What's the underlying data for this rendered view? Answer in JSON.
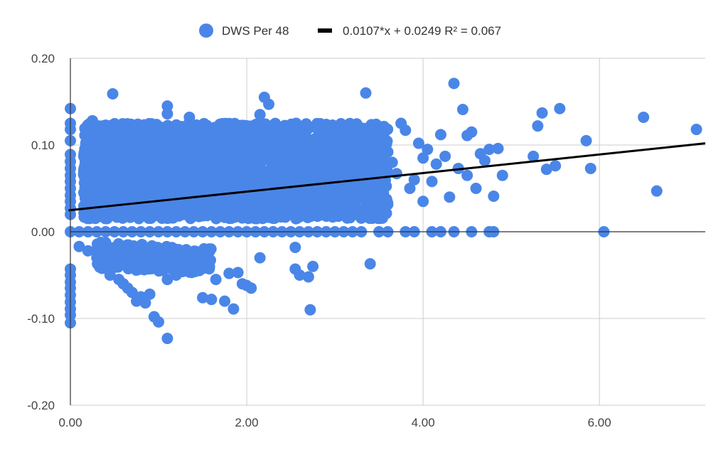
{
  "legend": {
    "series_label": "DWS Per 48",
    "trend_label": "0.0107*x + 0.0249 R² = 0.067"
  },
  "colors": {
    "points": "#4a86e8",
    "trendline": "#000000",
    "grid": "#cccccc",
    "axis": "#333333"
  },
  "chart_data": {
    "type": "scatter",
    "title": "",
    "xlabel": "",
    "ylabel": "",
    "xlim": [
      0,
      7.2
    ],
    "ylim": [
      -0.2,
      0.2
    ],
    "x_ticks": [
      "0.00",
      "2.00",
      "4.00",
      "6.00"
    ],
    "y_ticks": [
      "0.20",
      "0.10",
      "0.00",
      "-0.10",
      "-0.20"
    ],
    "grid": true,
    "legend_position": "top",
    "trendline": {
      "slope": 0.0107,
      "intercept": 0.0249,
      "r2": 0.067
    },
    "series": [
      {
        "name": "DWS Per 48",
        "points": [
          [
            0.0,
            0.142
          ],
          [
            0.0,
            0.125
          ],
          [
            0.0,
            0.118
          ],
          [
            0.0,
            0.105
          ],
          [
            0.0,
            0.089
          ],
          [
            0.0,
            0.081
          ],
          [
            0.0,
            0.073
          ],
          [
            0.0,
            0.065
          ],
          [
            0.0,
            0.058
          ],
          [
            0.0,
            0.05
          ],
          [
            0.0,
            0.042
          ],
          [
            0.0,
            0.035
          ],
          [
            0.0,
            0.027
          ],
          [
            0.0,
            0.02
          ],
          [
            0.0,
            0.0
          ],
          [
            0.0,
            -0.043
          ],
          [
            0.0,
            -0.05
          ],
          [
            0.0,
            -0.058
          ],
          [
            0.0,
            -0.065
          ],
          [
            0.0,
            -0.073
          ],
          [
            0.0,
            -0.081
          ],
          [
            0.0,
            -0.089
          ],
          [
            0.0,
            -0.096
          ],
          [
            0.0,
            -0.105
          ],
          [
            0.1,
            -0.017
          ],
          [
            0.2,
            -0.022
          ],
          [
            0.25,
            0.128
          ],
          [
            0.3,
            -0.03
          ],
          [
            0.35,
            -0.038
          ],
          [
            0.4,
            -0.042
          ],
          [
            0.45,
            -0.05
          ],
          [
            0.48,
            0.159
          ],
          [
            0.5,
            -0.033
          ],
          [
            0.55,
            -0.055
          ],
          [
            0.6,
            -0.06
          ],
          [
            0.65,
            -0.065
          ],
          [
            0.7,
            -0.07
          ],
          [
            0.75,
            -0.08
          ],
          [
            0.8,
            -0.075
          ],
          [
            0.85,
            -0.082
          ],
          [
            0.9,
            -0.072
          ],
          [
            0.95,
            -0.098
          ],
          [
            1.0,
            -0.104
          ],
          [
            1.1,
            -0.123
          ],
          [
            1.1,
            -0.055
          ],
          [
            1.2,
            -0.05
          ],
          [
            1.3,
            -0.045
          ],
          [
            1.1,
            0.145
          ],
          [
            1.1,
            0.136
          ],
          [
            1.35,
            0.132
          ],
          [
            1.5,
            -0.076
          ],
          [
            1.6,
            -0.078
          ],
          [
            1.65,
            -0.055
          ],
          [
            1.75,
            -0.08
          ],
          [
            1.8,
            -0.048
          ],
          [
            1.85,
            -0.089
          ],
          [
            1.9,
            -0.047
          ],
          [
            1.95,
            -0.06
          ],
          [
            2.0,
            -0.062
          ],
          [
            2.05,
            -0.065
          ],
          [
            2.15,
            -0.03
          ],
          [
            2.2,
            0.155
          ],
          [
            2.25,
            0.147
          ],
          [
            2.15,
            0.135
          ],
          [
            2.55,
            -0.018
          ],
          [
            2.55,
            -0.043
          ],
          [
            2.6,
            -0.05
          ],
          [
            2.7,
            -0.052
          ],
          [
            2.72,
            -0.09
          ],
          [
            2.75,
            -0.04
          ],
          [
            3.35,
            0.16
          ],
          [
            3.4,
            -0.037
          ],
          [
            0.1,
            0.0
          ],
          [
            0.2,
            0.0
          ],
          [
            0.3,
            0.0
          ],
          [
            0.4,
            0.0
          ],
          [
            0.5,
            0.0
          ],
          [
            0.6,
            0.0
          ],
          [
            0.7,
            0.0
          ],
          [
            0.8,
            0.0
          ],
          [
            0.9,
            0.0
          ],
          [
            1.0,
            0.0
          ],
          [
            1.1,
            0.0
          ],
          [
            1.2,
            0.0
          ],
          [
            1.3,
            0.0
          ],
          [
            1.4,
            0.0
          ],
          [
            1.5,
            0.0
          ],
          [
            1.6,
            0.0
          ],
          [
            1.7,
            0.0
          ],
          [
            1.8,
            0.0
          ],
          [
            1.9,
            0.0
          ],
          [
            2.0,
            0.0
          ],
          [
            2.1,
            0.0
          ],
          [
            2.2,
            0.0
          ],
          [
            2.3,
            0.0
          ],
          [
            2.4,
            0.0
          ],
          [
            2.5,
            0.0
          ],
          [
            2.6,
            0.0
          ],
          [
            2.7,
            0.0
          ],
          [
            2.8,
            0.0
          ],
          [
            2.9,
            0.0
          ],
          [
            3.0,
            0.0
          ],
          [
            3.1,
            0.0
          ],
          [
            3.2,
            0.0
          ],
          [
            3.3,
            0.0
          ],
          [
            3.5,
            0.0
          ],
          [
            3.6,
            0.0
          ],
          [
            3.8,
            0.0
          ],
          [
            3.9,
            0.0
          ],
          [
            4.1,
            0.0
          ],
          [
            4.2,
            0.0
          ],
          [
            4.35,
            0.0
          ],
          [
            4.55,
            0.0
          ],
          [
            4.75,
            0.0
          ],
          [
            4.8,
            0.0
          ],
          [
            6.05,
            0.0
          ],
          [
            3.55,
            0.11
          ],
          [
            3.6,
            0.092
          ],
          [
            3.65,
            0.08
          ],
          [
            3.7,
            0.067
          ],
          [
            3.75,
            0.125
          ],
          [
            3.8,
            0.117
          ],
          [
            3.85,
            0.05
          ],
          [
            3.9,
            0.06
          ],
          [
            3.95,
            0.102
          ],
          [
            4.0,
            0.085
          ],
          [
            4.0,
            0.035
          ],
          [
            4.05,
            0.095
          ],
          [
            4.1,
            0.058
          ],
          [
            4.15,
            0.078
          ],
          [
            4.2,
            0.112
          ],
          [
            4.25,
            0.087
          ],
          [
            4.3,
            0.04
          ],
          [
            4.35,
            0.171
          ],
          [
            4.4,
            0.073
          ],
          [
            4.45,
            0.141
          ],
          [
            4.5,
            0.065
          ],
          [
            4.5,
            0.111
          ],
          [
            4.55,
            0.115
          ],
          [
            4.6,
            0.05
          ],
          [
            4.65,
            0.09
          ],
          [
            4.7,
            0.082
          ],
          [
            4.75,
            0.095
          ],
          [
            4.8,
            0.041
          ],
          [
            4.85,
            0.096
          ],
          [
            4.9,
            0.065
          ],
          [
            5.25,
            0.087
          ],
          [
            5.3,
            0.122
          ],
          [
            5.35,
            0.137
          ],
          [
            5.4,
            0.072
          ],
          [
            5.5,
            0.076
          ],
          [
            5.55,
            0.142
          ],
          [
            5.85,
            0.105
          ],
          [
            5.9,
            0.073
          ],
          [
            6.5,
            0.132
          ],
          [
            6.65,
            0.047
          ],
          [
            7.1,
            0.118
          ]
        ]
      }
    ]
  }
}
